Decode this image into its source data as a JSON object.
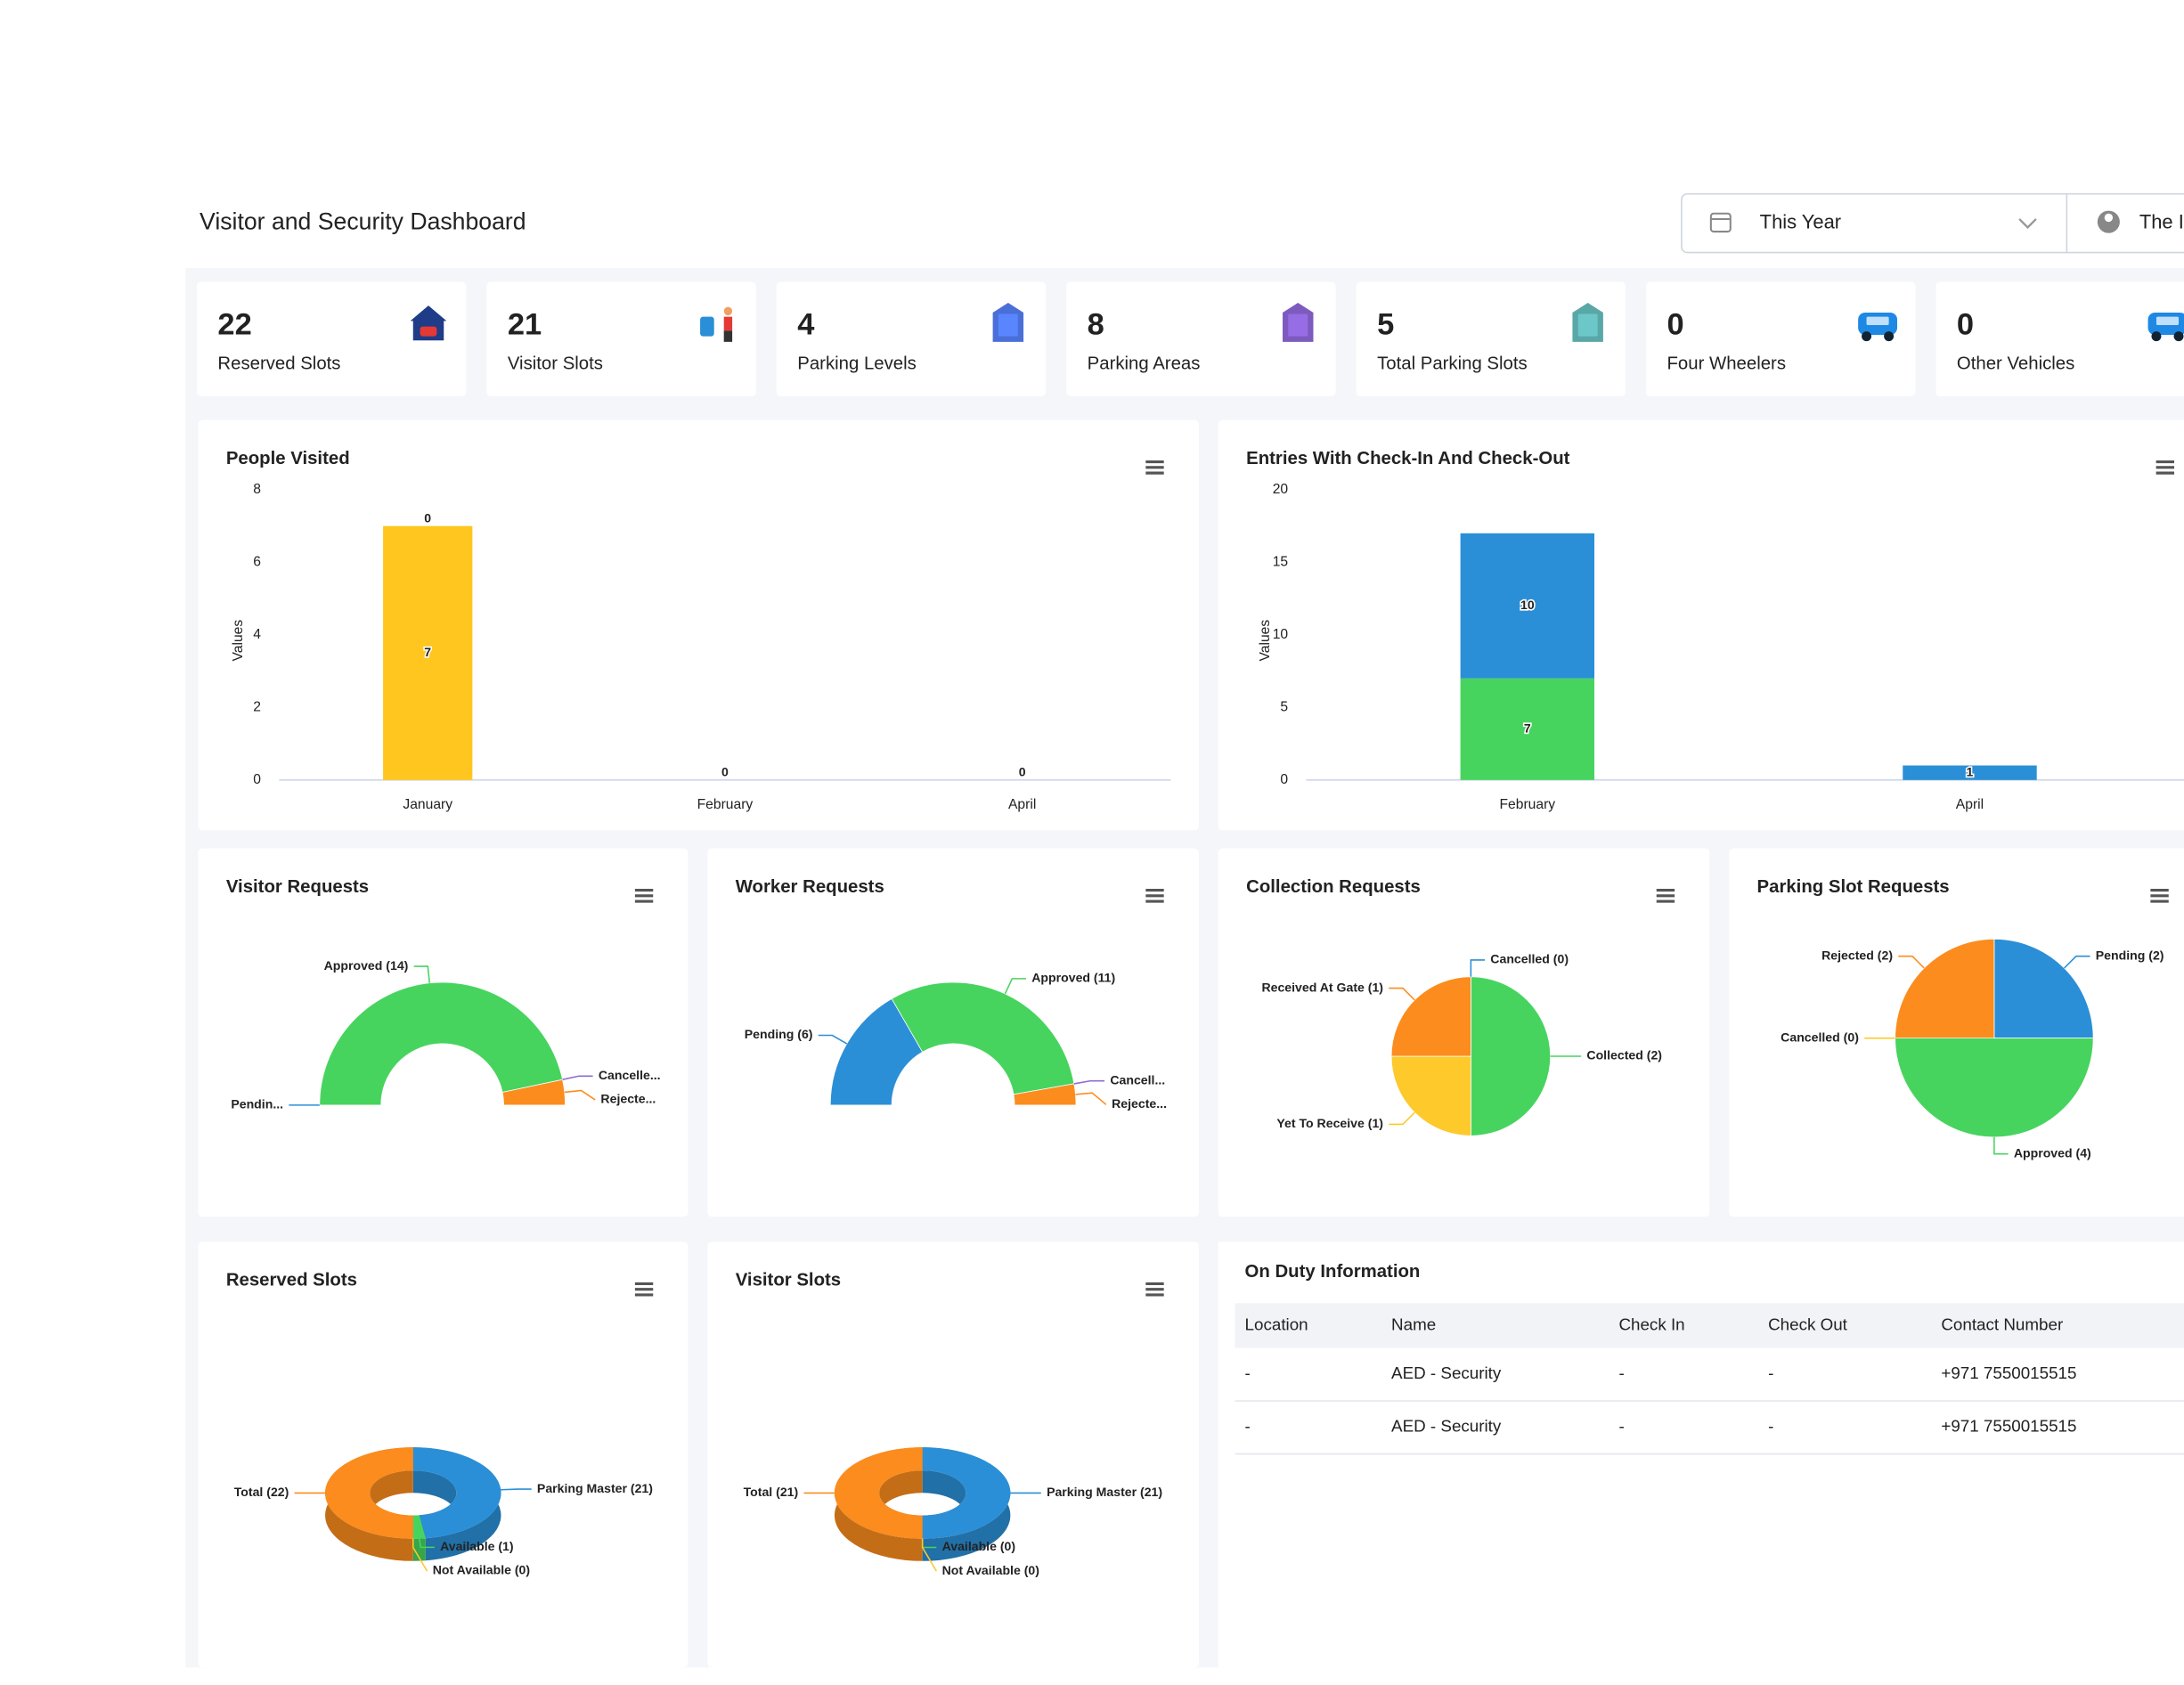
{
  "header": {
    "title": "Visitor and Security Dashboard",
    "period": "This Year",
    "user": "The I"
  },
  "stats": [
    {
      "value": 22,
      "label": "Reserved Slots"
    },
    {
      "value": 21,
      "label": "Visitor Slots"
    },
    {
      "value": 4,
      "label": "Parking Levels"
    },
    {
      "value": 8,
      "label": "Parking Areas"
    },
    {
      "value": 5,
      "label": "Total Parking Slots"
    },
    {
      "value": 0,
      "label": "Four Wheelers"
    },
    {
      "value": 0,
      "label": "Other Vehicles"
    }
  ],
  "chart_data": [
    {
      "type": "bar",
      "title": "People Visited",
      "ylabel": "Values",
      "categories": [
        "January",
        "February",
        "April"
      ],
      "series": [
        {
          "color": "#fec61f",
          "values": [
            7,
            0,
            0
          ]
        },
        {
          "color": "#2a8fd6",
          "values": [
            0,
            null,
            null
          ]
        }
      ],
      "ylim": [
        0,
        8
      ],
      "yticks": [
        0,
        2,
        4,
        6,
        8
      ],
      "stacked": true
    },
    {
      "type": "bar",
      "title": "Entries With Check-In And Check-Out",
      "ylabel": "Values",
      "categories": [
        "February",
        "April"
      ],
      "series": [
        {
          "color": "#47d45e",
          "values": [
            7,
            null
          ]
        },
        {
          "color": "#2a8fd6",
          "values": [
            10,
            1
          ]
        }
      ],
      "ylim": [
        0,
        20
      ],
      "yticks": [
        0,
        5,
        10,
        15,
        20
      ],
      "stacked": true
    },
    {
      "type": "donut",
      "semicircle": true,
      "title": "Visitor Requests",
      "categories": [
        "Pendin...",
        "Approved (14)",
        "Cancelle...",
        "Rejecte..."
      ],
      "values": [
        0,
        14,
        0,
        1
      ],
      "colors": [
        "#2a8fd6",
        "#47d45e",
        "#8e6bd1",
        "#fb8c1d"
      ]
    },
    {
      "type": "donut",
      "semicircle": true,
      "title": "Worker Requests",
      "categories": [
        "Pending (6)",
        "Approved (11)",
        "Cancell...",
        "Rejecte..."
      ],
      "values": [
        6,
        11,
        0,
        1
      ],
      "colors": [
        "#2a8fd6",
        "#47d45e",
        "#8e6bd1",
        "#fb8c1d"
      ]
    },
    {
      "type": "pie",
      "title": "Collection Requests",
      "categories": [
        "Cancelled (0)",
        "Collected (2)",
        "Yet To Receive (1)",
        "Received At Gate (1)"
      ],
      "values": [
        0,
        2,
        1,
        1
      ],
      "colors": [
        "#2a8fd6",
        "#47d45e",
        "#fdc92b",
        "#fb8c1d"
      ]
    },
    {
      "type": "pie",
      "title": "Parking Slot Requests",
      "categories": [
        "Pending (2)",
        "Approved (4)",
        "Cancelled (0)",
        "Rejected (2)"
      ],
      "values": [
        2,
        4,
        0,
        2
      ],
      "colors": [
        "#2a8fd6",
        "#47d45e",
        "#fdc92b",
        "#fb8c1d"
      ]
    },
    {
      "type": "donut",
      "three_d": true,
      "title": "Reserved Slots",
      "categories": [
        "Parking Master (21)",
        "Available (1)",
        "Not Available (0)",
        "Total (22)"
      ],
      "values": [
        21,
        1,
        0,
        22
      ],
      "colors": [
        "#2a8fd6",
        "#47d45e",
        "#fdc92b",
        "#fb8c1d"
      ]
    },
    {
      "type": "donut",
      "three_d": true,
      "title": "Visitor Slots",
      "categories": [
        "Parking Master (21)",
        "Available (0)",
        "Not Available (0)",
        "Total (21)"
      ],
      "values": [
        21,
        0,
        0,
        21
      ],
      "colors": [
        "#2a8fd6",
        "#47d45e",
        "#fdc92b",
        "#fb8c1d"
      ]
    }
  ],
  "table": {
    "title": "On Duty Information",
    "columns": [
      "Location",
      "Name",
      "Check In",
      "Check Out",
      "Contact Number"
    ],
    "rows": [
      [
        "-",
        "AED - Security",
        "-",
        "-",
        "+971 7550015515"
      ],
      [
        "-",
        "AED - Security",
        "-",
        "-",
        "+971 7550015515"
      ]
    ]
  }
}
